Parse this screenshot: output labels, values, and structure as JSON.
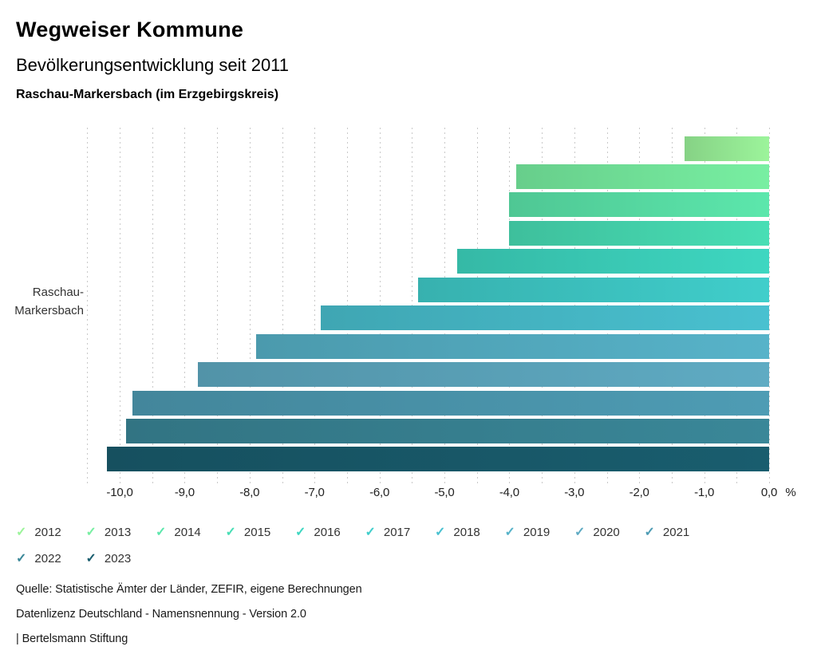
{
  "header": {
    "app_title": "Wegweiser Kommune",
    "chart_title": "Bevölkerungsentwicklung seit 2011",
    "region_line": "Raschau-Markersbach (im Erzgebirgskreis)"
  },
  "chart_data": {
    "type": "bar",
    "orientation": "horizontal",
    "title": "Bevölkerungsentwicklung seit 2011",
    "region": "Raschau-Markersbach (im Erzgebirgskreis)",
    "category": "Raschau-Markersbach",
    "ylabel_lines": [
      "Raschau-",
      "Markersbach"
    ],
    "unit": "%",
    "xlim": [
      -10.5,
      0
    ],
    "grid": true,
    "grid_step": 0.5,
    "legend_position": "bottom",
    "legend_check_glyph": "✓",
    "x_ticks": [
      {
        "value": -10,
        "label": "-10,0"
      },
      {
        "value": -9,
        "label": "-9,0"
      },
      {
        "value": -8,
        "label": "-8,0"
      },
      {
        "value": -7,
        "label": "-7,0"
      },
      {
        "value": -6,
        "label": "-6,0"
      },
      {
        "value": -5,
        "label": "-5,0"
      },
      {
        "value": -4,
        "label": "-4,0"
      },
      {
        "value": -3,
        "label": "-3,0"
      },
      {
        "value": -2,
        "label": "-2,0"
      },
      {
        "value": -1,
        "label": "-1,0"
      },
      {
        "value": 0,
        "label": "0,0"
      }
    ],
    "series": [
      {
        "name": "2012",
        "value": -1.3,
        "color": "#9cf49b"
      },
      {
        "name": "2013",
        "value": -3.9,
        "color": "#78efa2"
      },
      {
        "name": "2014",
        "value": -4.0,
        "color": "#5ce7ac"
      },
      {
        "name": "2015",
        "value": -4.0,
        "color": "#48deb5"
      },
      {
        "name": "2016",
        "value": -4.8,
        "color": "#3ed7c1"
      },
      {
        "name": "2017",
        "value": -5.4,
        "color": "#40cecb"
      },
      {
        "name": "2018",
        "value": -6.9,
        "color": "#49c1d0"
      },
      {
        "name": "2019",
        "value": -7.9,
        "color": "#57b3c9"
      },
      {
        "name": "2020",
        "value": -8.8,
        "color": "#5fabc3"
      },
      {
        "name": "2021",
        "value": -9.8,
        "color": "#4e9cb4"
      },
      {
        "name": "2022",
        "value": -9.9,
        "color": "#3a8798"
      },
      {
        "name": "2023",
        "value": -10.2,
        "color": "#195d6e"
      }
    ]
  },
  "footer": {
    "source": "Quelle: Statistische Ämter der Länder, ZEFIR, eigene Berechnungen",
    "license": "Datenlizenz Deutschland - Namensnennung - Version 2.0",
    "brand": "| Bertelsmann Stiftung"
  }
}
